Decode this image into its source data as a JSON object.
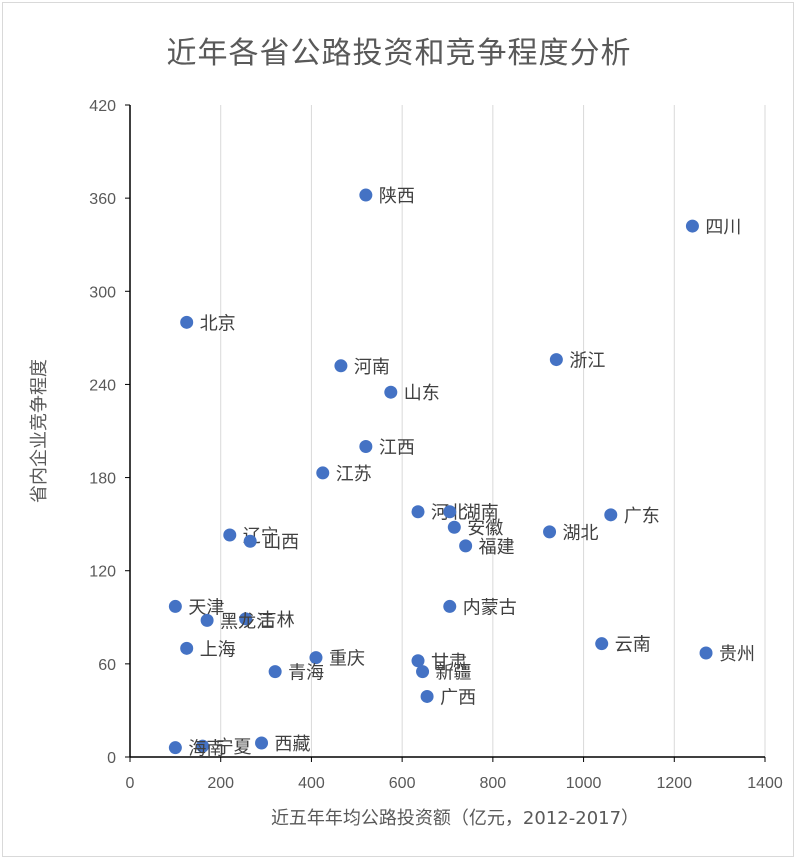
{
  "chart_data": {
    "type": "scatter",
    "title": "近年各省公路投资和竞争程度分析",
    "xlabel": "近五年年均公路投资额（亿元，2012-2017）",
    "ylabel": "省内企业竞争程度",
    "xlim": [
      0,
      1400
    ],
    "ylim": [
      0,
      420
    ],
    "xticks": [
      "0",
      "200",
      "400",
      "600",
      "800",
      "1000",
      "1200",
      "1400"
    ],
    "yticks": [
      "0",
      "60",
      "120",
      "180",
      "240",
      "300",
      "360",
      "420"
    ],
    "grid": "vertical",
    "marker_color": "#4472c4",
    "points": [
      {
        "label": "陕西",
        "x": 520,
        "y": 362
      },
      {
        "label": "四川",
        "x": 1240,
        "y": 342
      },
      {
        "label": "北京",
        "x": 125,
        "y": 280
      },
      {
        "label": "浙江",
        "x": 940,
        "y": 256
      },
      {
        "label": "河南",
        "x": 465,
        "y": 252
      },
      {
        "label": "山东",
        "x": 575,
        "y": 235
      },
      {
        "label": "江西",
        "x": 520,
        "y": 200
      },
      {
        "label": "江苏",
        "x": 425,
        "y": 183
      },
      {
        "label": "河北",
        "x": 635,
        "y": 158
      },
      {
        "label": "湖南",
        "x": 705,
        "y": 158
      },
      {
        "label": "广东",
        "x": 1060,
        "y": 156
      },
      {
        "label": "安徽",
        "x": 715,
        "y": 148
      },
      {
        "label": "湖北",
        "x": 925,
        "y": 145
      },
      {
        "label": "辽宁",
        "x": 220,
        "y": 143
      },
      {
        "label": "山西",
        "x": 265,
        "y": 139
      },
      {
        "label": "福建",
        "x": 740,
        "y": 136
      },
      {
        "label": "天津",
        "x": 100,
        "y": 97
      },
      {
        "label": "内蒙古",
        "x": 705,
        "y": 97
      },
      {
        "label": "吉林",
        "x": 255,
        "y": 89
      },
      {
        "label": "黑龙江",
        "x": 170,
        "y": 88
      },
      {
        "label": "云南",
        "x": 1040,
        "y": 73
      },
      {
        "label": "上海",
        "x": 125,
        "y": 70
      },
      {
        "label": "贵州",
        "x": 1270,
        "y": 67
      },
      {
        "label": "重庆",
        "x": 410,
        "y": 64
      },
      {
        "label": "甘肃",
        "x": 635,
        "y": 62
      },
      {
        "label": "青海",
        "x": 320,
        "y": 55
      },
      {
        "label": "新疆",
        "x": 645,
        "y": 55
      },
      {
        "label": "广西",
        "x": 655,
        "y": 39
      },
      {
        "label": "西藏",
        "x": 290,
        "y": 9
      },
      {
        "label": "宁夏",
        "x": 160,
        "y": 7
      },
      {
        "label": "海南",
        "x": 100,
        "y": 6
      }
    ]
  }
}
